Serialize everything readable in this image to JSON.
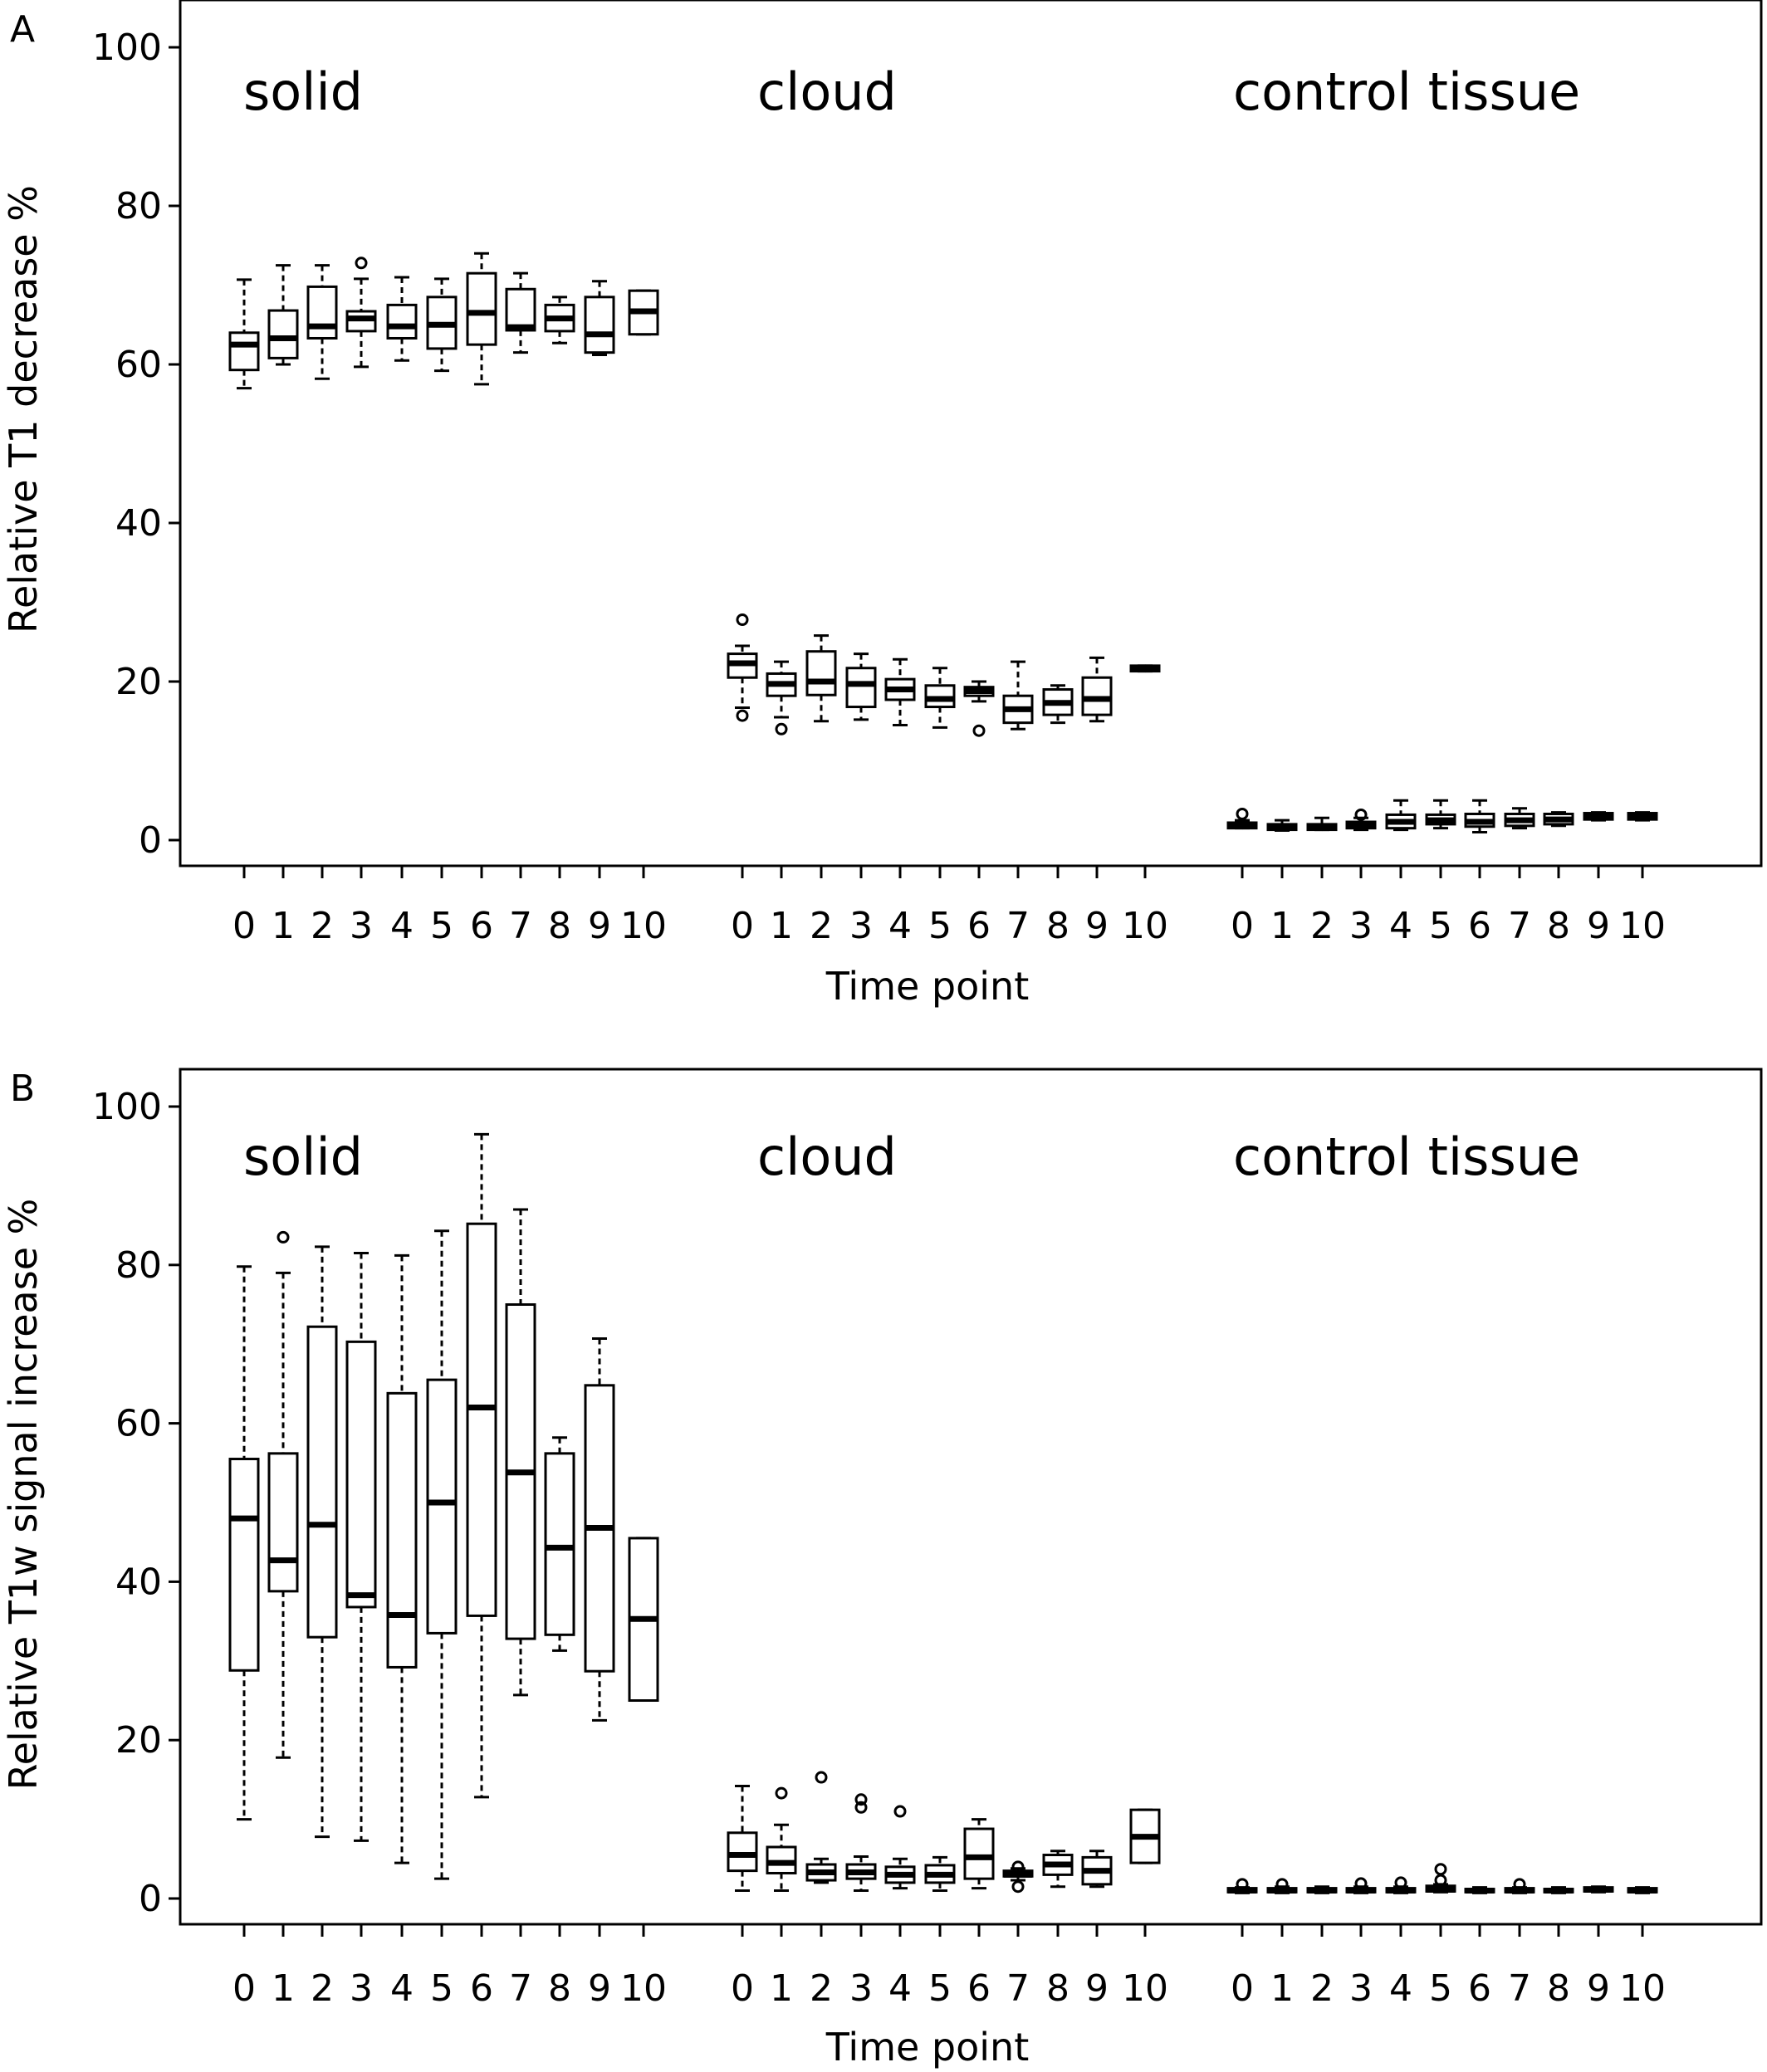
{
  "panels": [
    {
      "letter": "A",
      "ylabel": "Relative T1 decrease %",
      "xlabel": "Time point",
      "group_labels": [
        "solid",
        "cloud",
        "control tissue"
      ]
    },
    {
      "letter": "B",
      "ylabel": "Relative T1w signal increase %",
      "xlabel": "Time point",
      "group_labels": [
        "solid",
        "cloud",
        "control tissue"
      ]
    }
  ],
  "chart_data": [
    {
      "type": "boxplot",
      "panel": "A",
      "ylabel": "Relative T1 decrease %",
      "xlabel": "Time point",
      "ylim": [
        0,
        100
      ],
      "yticks": [
        0,
        20,
        40,
        60,
        80,
        100
      ],
      "categories": [
        "0",
        "1",
        "2",
        "3",
        "4",
        "5",
        "6",
        "7",
        "8",
        "9",
        "10"
      ],
      "groups": [
        {
          "name": "solid",
          "boxes": [
            {
              "min": 57,
              "q1": 59.3,
              "median": 62.5,
              "q3": 64,
              "max": 70.7,
              "outliers": []
            },
            {
              "min": 60,
              "q1": 60.8,
              "median": 63.3,
              "q3": 66.8,
              "max": 72.5,
              "outliers": []
            },
            {
              "min": 58.2,
              "q1": 63.3,
              "median": 64.8,
              "q3": 69.8,
              "max": 72.5,
              "outliers": []
            },
            {
              "min": 59.7,
              "q1": 64.2,
              "median": 65.8,
              "q3": 66.7,
              "max": 70.8,
              "outliers": [
                72.8
              ]
            },
            {
              "min": 60.5,
              "q1": 63.3,
              "median": 64.8,
              "q3": 67.5,
              "max": 71,
              "outliers": []
            },
            {
              "min": 59.2,
              "q1": 62,
              "median": 65,
              "q3": 68.5,
              "max": 70.8,
              "outliers": []
            },
            {
              "min": 57.5,
              "q1": 62.5,
              "median": 66.5,
              "q3": 71.5,
              "max": 74,
              "outliers": []
            },
            {
              "min": 61.5,
              "q1": 64.3,
              "median": 64.7,
              "q3": 69.5,
              "max": 71.5,
              "outliers": []
            },
            {
              "min": 62.7,
              "q1": 64.2,
              "median": 65.8,
              "q3": 67.5,
              "max": 68.5,
              "outliers": []
            },
            {
              "min": 61.2,
              "q1": 61.5,
              "median": 63.8,
              "q3": 68.5,
              "max": 70.5,
              "outliers": []
            },
            {
              "min": 63.8,
              "q1": 63.8,
              "median": 66.7,
              "q3": 69.3,
              "max": 69.3,
              "outliers": []
            }
          ]
        },
        {
          "name": "cloud",
          "boxes": [
            {
              "min": 16.7,
              "q1": 20.5,
              "median": 22.3,
              "q3": 23.5,
              "max": 24.5,
              "outliers": [
                27.8,
                15.7
              ]
            },
            {
              "min": 15.5,
              "q1": 18.2,
              "median": 19.7,
              "q3": 21,
              "max": 22.5,
              "outliers": [
                14
              ]
            },
            {
              "min": 15,
              "q1": 18.3,
              "median": 20,
              "q3": 23.8,
              "max": 25.8,
              "outliers": []
            },
            {
              "min": 15.2,
              "q1": 16.8,
              "median": 19.7,
              "q3": 21.7,
              "max": 23.5,
              "outliers": []
            },
            {
              "min": 14.5,
              "q1": 17.7,
              "median": 19,
              "q3": 20.3,
              "max": 22.8,
              "outliers": []
            },
            {
              "min": 14.2,
              "q1": 16.8,
              "median": 17.8,
              "q3": 19.5,
              "max": 21.7,
              "outliers": []
            },
            {
              "min": 17.5,
              "q1": 18.2,
              "median": 18.8,
              "q3": 19.3,
              "max": 20,
              "outliers": [
                13.8
              ]
            },
            {
              "min": 14,
              "q1": 14.8,
              "median": 16.5,
              "q3": 18.2,
              "max": 22.5,
              "outliers": []
            },
            {
              "min": 14.8,
              "q1": 15.8,
              "median": 17.3,
              "q3": 19,
              "max": 19.5,
              "outliers": []
            },
            {
              "min": 15,
              "q1": 15.8,
              "median": 17.8,
              "q3": 20.5,
              "max": 23,
              "outliers": []
            },
            {
              "min": 21.3,
              "q1": 21.3,
              "median": 21.7,
              "q3": 22,
              "max": 22,
              "outliers": []
            }
          ]
        },
        {
          "name": "control tissue",
          "boxes": [
            {
              "min": 1.5,
              "q1": 1.5,
              "median": 1.8,
              "q3": 2.2,
              "max": 2.5,
              "outliers": [
                3.3
              ]
            },
            {
              "min": 1.2,
              "q1": 1.3,
              "median": 1.6,
              "q3": 2,
              "max": 2.5,
              "outliers": []
            },
            {
              "min": 1.3,
              "q1": 1.3,
              "median": 1.6,
              "q3": 2,
              "max": 2.8,
              "outliers": []
            },
            {
              "min": 1.3,
              "q1": 1.5,
              "median": 1.9,
              "q3": 2.3,
              "max": 2.8,
              "outliers": [
                3.2
              ]
            },
            {
              "min": 1.3,
              "q1": 1.5,
              "median": 2.3,
              "q3": 3.2,
              "max": 5,
              "outliers": []
            },
            {
              "min": 1.5,
              "q1": 2,
              "median": 2.5,
              "q3": 3.2,
              "max": 5,
              "outliers": []
            },
            {
              "min": 1,
              "q1": 1.7,
              "median": 2.3,
              "q3": 3.3,
              "max": 5,
              "outliers": []
            },
            {
              "min": 1.5,
              "q1": 1.8,
              "median": 2.5,
              "q3": 3.3,
              "max": 4,
              "outliers": []
            },
            {
              "min": 1.8,
              "q1": 2,
              "median": 2.6,
              "q3": 3.3,
              "max": 3.5,
              "outliers": []
            },
            {
              "min": 2.5,
              "q1": 2.6,
              "median": 3,
              "q3": 3.4,
              "max": 3.5,
              "outliers": []
            },
            {
              "min": 2.5,
              "q1": 2.6,
              "median": 3,
              "q3": 3.4,
              "max": 3.5,
              "outliers": []
            }
          ]
        }
      ]
    },
    {
      "type": "boxplot",
      "panel": "B",
      "ylabel": "Relative T1w signal increase %",
      "xlabel": "Time point",
      "ylim": [
        0,
        100
      ],
      "yticks": [
        0,
        20,
        40,
        60,
        80,
        100
      ],
      "categories": [
        "0",
        "1",
        "2",
        "3",
        "4",
        "5",
        "6",
        "7",
        "8",
        "9",
        "10"
      ],
      "groups": [
        {
          "name": "solid",
          "boxes": [
            {
              "min": 10,
              "q1": 28.8,
              "median": 48,
              "q3": 55.5,
              "max": 79.8,
              "outliers": []
            },
            {
              "min": 17.8,
              "q1": 38.8,
              "median": 42.7,
              "q3": 56.2,
              "max": 79,
              "outliers": [
                83.5
              ]
            },
            {
              "min": 7.8,
              "q1": 33,
              "median": 47.2,
              "q3": 72.2,
              "max": 82.3,
              "outliers": []
            },
            {
              "min": 7.3,
              "q1": 36.8,
              "median": 38.3,
              "q3": 70.3,
              "max": 81.5,
              "outliers": []
            },
            {
              "min": 4.5,
              "q1": 29.2,
              "median": 35.8,
              "q3": 63.8,
              "max": 81.2,
              "outliers": []
            },
            {
              "min": 2.5,
              "q1": 33.5,
              "median": 50,
              "q3": 65.5,
              "max": 84.3,
              "outliers": []
            },
            {
              "min": 12.8,
              "q1": 35.7,
              "median": 62,
              "q3": 85.2,
              "max": 96.5,
              "outliers": []
            },
            {
              "min": 25.7,
              "q1": 32.8,
              "median": 53.8,
              "q3": 75,
              "max": 87,
              "outliers": []
            },
            {
              "min": 31.3,
              "q1": 33.3,
              "median": 44.3,
              "q3": 56.2,
              "max": 58.2,
              "outliers": []
            },
            {
              "min": 22.5,
              "q1": 28.7,
              "median": 46.8,
              "q3": 64.8,
              "max": 70.7,
              "outliers": []
            },
            {
              "min": 25,
              "q1": 25,
              "median": 35.3,
              "q3": 45.5,
              "max": 45.5,
              "outliers": []
            }
          ]
        },
        {
          "name": "cloud",
          "boxes": [
            {
              "min": 1,
              "q1": 3.5,
              "median": 5.5,
              "q3": 8.3,
              "max": 14.2,
              "outliers": []
            },
            {
              "min": 1,
              "q1": 3.2,
              "median": 4.5,
              "q3": 6.5,
              "max": 9.3,
              "outliers": [
                13.3
              ]
            },
            {
              "min": 2,
              "q1": 2.3,
              "median": 3.3,
              "q3": 4.3,
              "max": 5,
              "outliers": [
                15.3
              ]
            },
            {
              "min": 1,
              "q1": 2.5,
              "median": 3.3,
              "q3": 4.3,
              "max": 5.3,
              "outliers": [
                12.5,
                11.5
              ]
            },
            {
              "min": 1.3,
              "q1": 2,
              "median": 3,
              "q3": 4,
              "max": 5,
              "outliers": [
                11
              ]
            },
            {
              "min": 1,
              "q1": 2,
              "median": 3,
              "q3": 4.2,
              "max": 5.2,
              "outliers": []
            },
            {
              "min": 1.3,
              "q1": 2.5,
              "median": 5.2,
              "q3": 8.8,
              "max": 10,
              "outliers": []
            },
            {
              "min": 2.3,
              "q1": 2.8,
              "median": 3,
              "q3": 3.5,
              "max": 3.8,
              "outliers": [
                4,
                1.5
              ]
            },
            {
              "min": 1.5,
              "q1": 3,
              "median": 4.3,
              "q3": 5.5,
              "max": 6,
              "outliers": []
            },
            {
              "min": 1.5,
              "q1": 1.8,
              "median": 3.5,
              "q3": 5.2,
              "max": 6,
              "outliers": []
            },
            {
              "min": 4.5,
              "q1": 4.5,
              "median": 7.8,
              "q3": 11.2,
              "max": 11.2,
              "outliers": []
            }
          ]
        },
        {
          "name": "control tissue",
          "boxes": [
            {
              "min": 0.7,
              "q1": 0.8,
              "median": 1,
              "q3": 1.3,
              "max": 1.4,
              "outliers": [
                1.8
              ]
            },
            {
              "min": 0.7,
              "q1": 0.8,
              "median": 1,
              "q3": 1.3,
              "max": 1.5,
              "outliers": [
                1.8
              ]
            },
            {
              "min": 0.7,
              "q1": 0.8,
              "median": 1,
              "q3": 1.3,
              "max": 1.5,
              "outliers": []
            },
            {
              "min": 0.7,
              "q1": 0.8,
              "median": 1,
              "q3": 1.3,
              "max": 1.5,
              "outliers": [
                1.9
              ]
            },
            {
              "min": 0.7,
              "q1": 0.8,
              "median": 1,
              "q3": 1.3,
              "max": 1.5,
              "outliers": [
                2
              ]
            },
            {
              "min": 0.8,
              "q1": 0.9,
              "median": 1.1,
              "q3": 1.6,
              "max": 1.8,
              "outliers": [
                3.7,
                2.3
              ]
            },
            {
              "min": 0.7,
              "q1": 0.8,
              "median": 1,
              "q3": 1.2,
              "max": 1.4,
              "outliers": []
            },
            {
              "min": 0.7,
              "q1": 0.8,
              "median": 1,
              "q3": 1.3,
              "max": 1.4,
              "outliers": [
                1.8
              ]
            },
            {
              "min": 0.7,
              "q1": 0.8,
              "median": 1,
              "q3": 1.2,
              "max": 1.4,
              "outliers": []
            },
            {
              "min": 0.8,
              "q1": 0.9,
              "median": 1.1,
              "q3": 1.4,
              "max": 1.5,
              "outliers": []
            },
            {
              "min": 0.7,
              "q1": 0.8,
              "median": 1,
              "q3": 1.3,
              "max": 1.4,
              "outliers": []
            }
          ]
        }
      ]
    }
  ]
}
